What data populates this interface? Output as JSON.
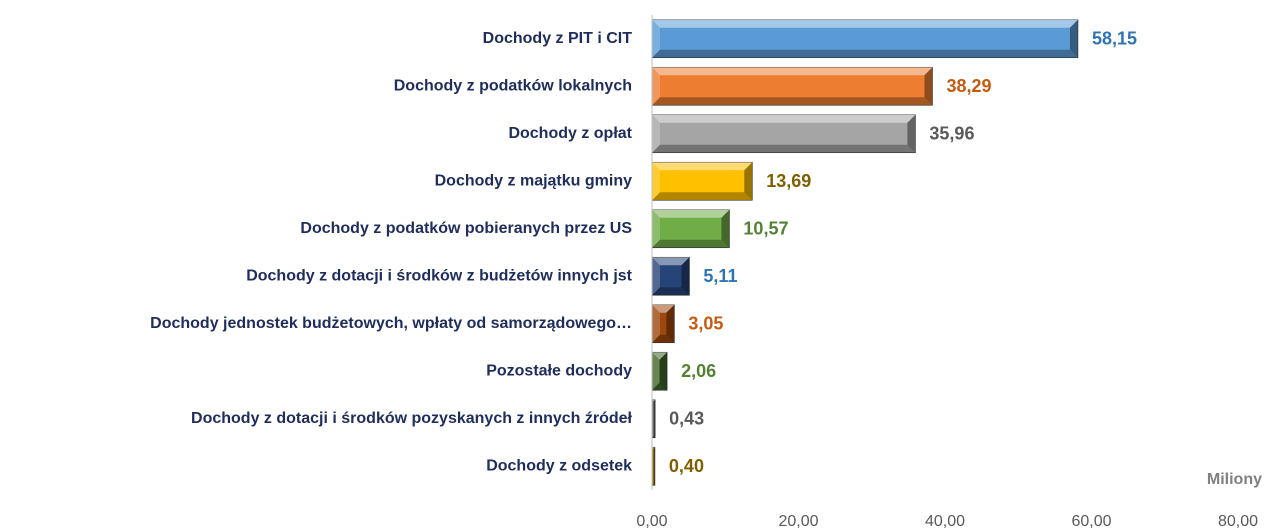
{
  "chart_data": {
    "type": "bar",
    "orientation": "horizontal",
    "categories": [
      "Dochody z PIT i CIT",
      "Dochody z podatków lokalnych",
      "Dochody z opłat",
      "Dochody z majątku gminy",
      "Dochody z podatków pobieranych przez US",
      "Dochody z dotacji i środków z budżetów innych jst",
      "Dochody jednostek budżetowych, wpłaty od samorządowego…",
      "Pozostałe dochody",
      "Dochody z dotacji i środków pozyskanych z innych źródeł",
      "Dochody z odsetek"
    ],
    "values": [
      58.15,
      38.29,
      35.96,
      13.69,
      10.57,
      5.11,
      3.05,
      2.06,
      0.43,
      0.4
    ],
    "value_labels": [
      "58,15",
      "38,29",
      "35,96",
      "13,69",
      "10,57",
      "5,11",
      "3,05",
      "2,06",
      "0,43",
      "0,40"
    ],
    "colors": [
      "#5b9bd5",
      "#ed7d31",
      "#a5a5a5",
      "#ffc000",
      "#70ad47",
      "#264478",
      "#9e480e",
      "#43682b",
      "#636363",
      "#997300"
    ],
    "label_colors": [
      "#2e75b6",
      "#c55a11",
      "#595959",
      "#7f6000",
      "#548235",
      "#2e75b6",
      "#c55a11",
      "#548235",
      "#595959",
      "#7f6000"
    ],
    "xlabel": "Miliony",
    "xlim": [
      0,
      80
    ],
    "xticks": [
      {
        "value": 0,
        "label": "0,00"
      },
      {
        "value": 20,
        "label": "20,00"
      },
      {
        "value": 40,
        "label": "40,00"
      },
      {
        "value": 60,
        "label": "60,00"
      },
      {
        "value": 80,
        "label": "80,00"
      }
    ]
  }
}
